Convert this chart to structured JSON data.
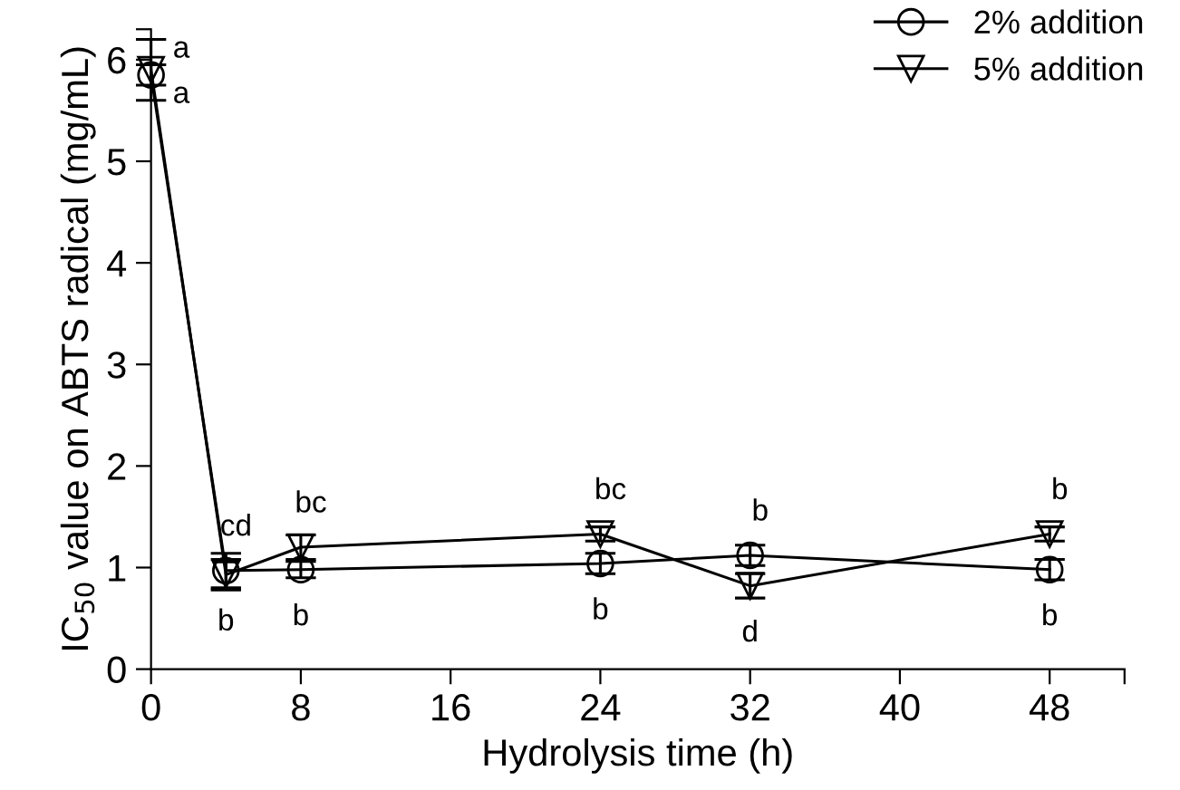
{
  "chart_data": {
    "type": "line",
    "xlabel": "Hydrolysis time (h)",
    "ylabel": "IC$_{50}$ value on ABTS radical (mg/mL)",
    "x": [
      0,
      4,
      8,
      24,
      32,
      48
    ],
    "series": [
      {
        "name": "2% addition",
        "color": "#000000",
        "marker": "circle",
        "values": [
          5.85,
          0.97,
          0.98,
          1.04,
          1.12,
          0.98
        ],
        "errors": [
          0.1,
          0.17,
          0.08,
          0.1,
          0.1,
          0.1
        ]
      },
      {
        "name": "5% addition",
        "color": "#000000",
        "marker": "triangle",
        "values": [
          5.9,
          0.93,
          1.2,
          1.33,
          0.82,
          1.33
        ],
        "errors": [
          0.3,
          0.15,
          0.12,
          0.07,
          0.12,
          0.07
        ]
      }
    ],
    "xlim": [
      0,
      52
    ],
    "xticks": [
      0,
      8,
      16,
      24,
      32,
      40,
      48,
      {
        "value": 52,
        "label": null
      }
    ],
    "ylim": [
      0,
      6.3
    ],
    "yticks": [
      0,
      1,
      2,
      3,
      4,
      5,
      6,
      {
        "value": 6.3,
        "label": null
      }
    ],
    "annotations": [
      {
        "text": "a",
        "x": 0,
        "y": 5.9
      },
      {
        "text": "a",
        "x": 0,
        "y": 5.85
      },
      {
        "text": "cd",
        "x": 4,
        "y": 0.97
      },
      {
        "text": "b",
        "x": 4,
        "y": 0.93
      },
      {
        "text": "bc",
        "x": 8,
        "y": 1.2
      },
      {
        "text": "b",
        "x": 8,
        "y": 0.98
      },
      {
        "text": "bc",
        "x": 24,
        "y": 1.33
      },
      {
        "text": "b",
        "x": 24,
        "y": 1.04
      },
      {
        "text": "b",
        "x": 32,
        "y": 1.12
      },
      {
        "text": "d",
        "x": 32,
        "y": 0.82
      },
      {
        "text": "b",
        "x": 48,
        "y": 1.33
      },
      {
        "text": "b",
        "x": 48,
        "y": 0.98
      }
    ],
    "legend": "top right",
    "grid": false,
    "line_style": "solid"
  }
}
